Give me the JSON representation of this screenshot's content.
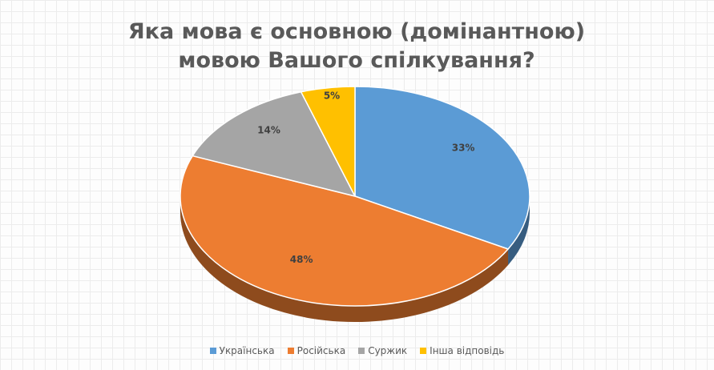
{
  "chart_data": {
    "type": "pie",
    "title": "Яка мова є основною (домінантною) мовою Вашого спілкування?",
    "categories": [
      "Українська",
      "Російська",
      "Суржик",
      "Інша відповідь"
    ],
    "values": [
      33,
      48,
      14,
      5
    ],
    "value_labels": [
      "33%",
      "48%",
      "14%",
      "5%"
    ],
    "colors": [
      "#5b9bd5",
      "#ed7d31",
      "#a5a5a5",
      "#ffc000"
    ],
    "legend": "bottom"
  }
}
